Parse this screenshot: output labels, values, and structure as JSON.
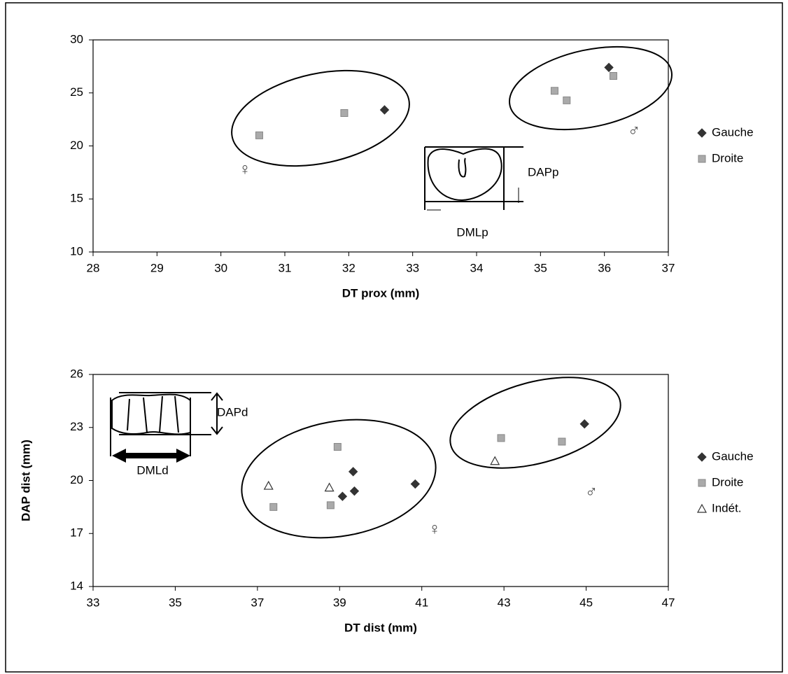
{
  "chart_data": [
    {
      "type": "scatter",
      "x_label": "DT prox (mm)",
      "xlim": [
        28,
        37
      ],
      "xticks": [
        28,
        29,
        30,
        31,
        32,
        33,
        34,
        35,
        36,
        37
      ],
      "ylim": [
        10,
        30
      ],
      "yticks": [
        10,
        15,
        20,
        25,
        30
      ],
      "series": [
        {
          "name": "Gauche",
          "color": "#333333",
          "marker": "diamond",
          "x": [
            32.56,
            36.07
          ],
          "values": [
            23.4,
            27.4
          ]
        },
        {
          "name": "Droite",
          "color": "#aaaaaa",
          "marker": "square",
          "x": [
            30.6,
            31.93,
            35.22,
            35.41,
            36.14
          ],
          "values": [
            21.0,
            23.1,
            25.2,
            24.3,
            26.6
          ]
        }
      ],
      "annotations": [
        "♀",
        "♂",
        "DAPp",
        "DMLp"
      ]
    },
    {
      "type": "scatter",
      "x_label": "DT dist (mm)",
      "y_label": "DAP dist (mm)",
      "xlim": [
        33,
        47
      ],
      "xticks": [
        33,
        35,
        37,
        39,
        41,
        43,
        45,
        47
      ],
      "ylim": [
        14,
        26
      ],
      "yticks": [
        14,
        17,
        20,
        23,
        26
      ],
      "series": [
        {
          "name": "Gauche",
          "color": "#333333",
          "marker": "diamond",
          "x": [
            39.07,
            39.36,
            39.33,
            40.84,
            44.96
          ],
          "values": [
            19.1,
            19.4,
            20.5,
            19.8,
            23.2
          ]
        },
        {
          "name": "Droite",
          "color": "#aaaaaa",
          "marker": "square",
          "x": [
            37.39,
            38.95,
            38.78,
            42.93,
            44.41
          ],
          "values": [
            18.5,
            21.9,
            18.6,
            22.4,
            22.2
          ]
        },
        {
          "name": "Indét.",
          "color": "#333333",
          "marker": "triangle",
          "x": [
            37.27,
            38.75,
            42.78
          ],
          "values": [
            19.7,
            19.6,
            21.1
          ]
        }
      ],
      "annotations": [
        "♀",
        "♂",
        "DAPd",
        "DMLd"
      ]
    }
  ]
}
